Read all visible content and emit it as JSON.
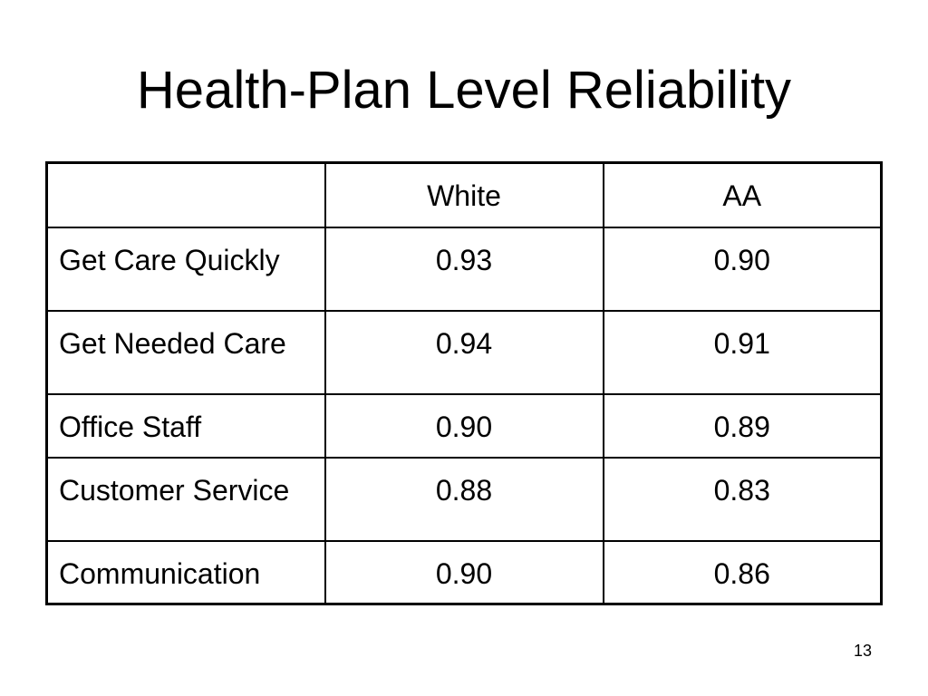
{
  "slide": {
    "title": "Health-Plan Level Reliability",
    "page_number": "13"
  },
  "table": {
    "columns": [
      "",
      "White",
      "AA"
    ],
    "rows": [
      {
        "label": "Get Care Quickly",
        "white": "0.93",
        "aa": "0.90"
      },
      {
        "label": "Get Needed Care",
        "white": "0.94",
        "aa": "0.91"
      },
      {
        "label": "Office Staff",
        "white": "0.90",
        "aa": "0.89"
      },
      {
        "label": "Customer Service",
        "white": "0.88",
        "aa": "0.83"
      },
      {
        "label": "Communication",
        "white": "0.90",
        "aa": "0.86"
      }
    ]
  }
}
